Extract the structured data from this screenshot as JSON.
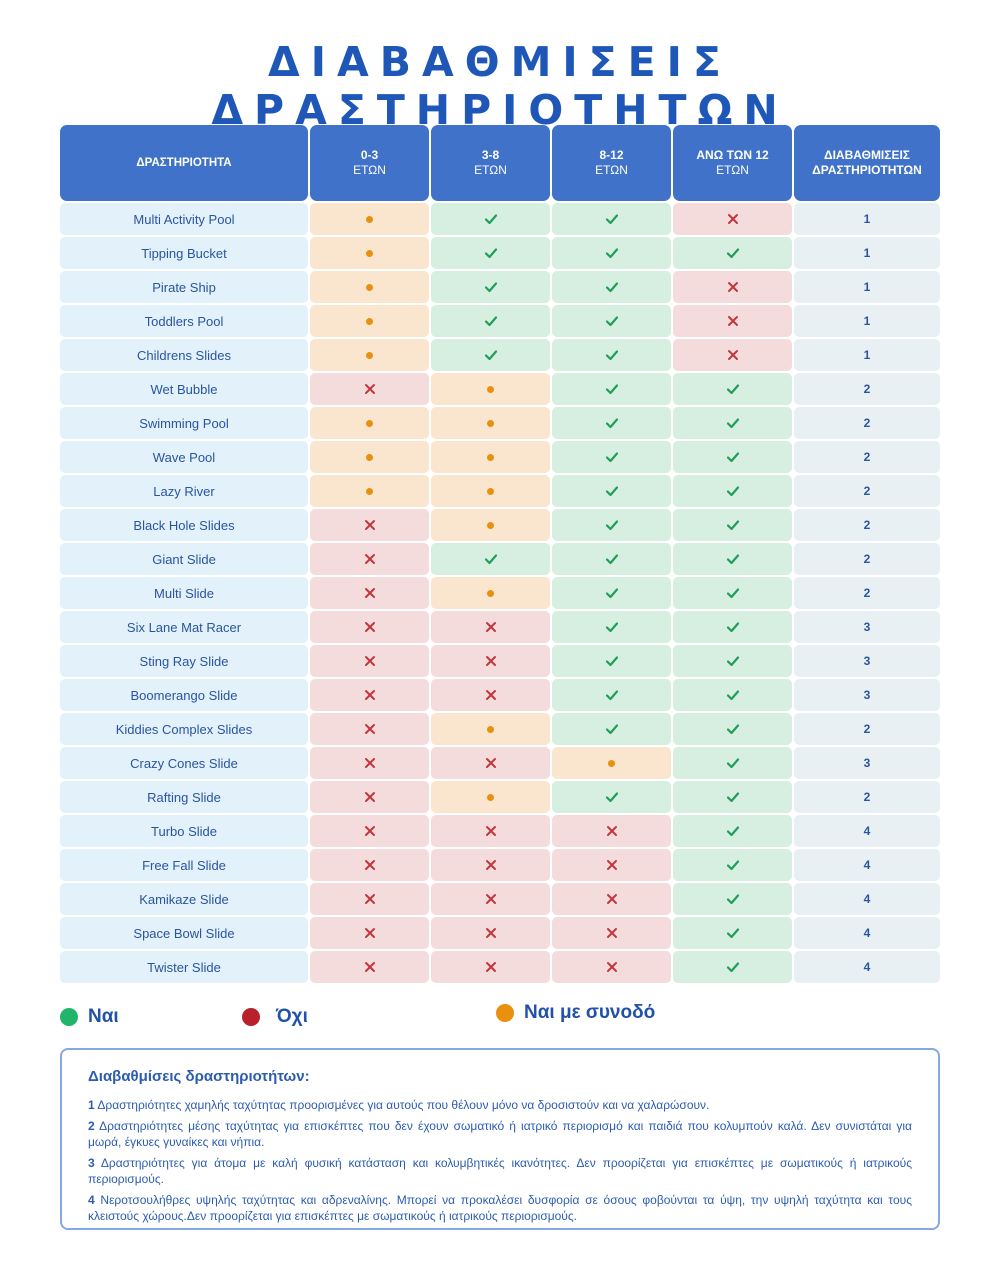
{
  "title": "ΔΙΑΒΑΘΜΙΣΕΙΣ ΔΡΑΣΤΗΡΙΟΤΗΤΩΝ",
  "header": {
    "activity": "ΔΡΑΣΤΗΡΙΟΤΗΤΑ",
    "ages": [
      {
        "line1": "0-3",
        "line2": "ΕΤΩΝ"
      },
      {
        "line1": "3-8",
        "line2": "ΕΤΩΝ"
      },
      {
        "line1": "8-12",
        "line2": "ΕΤΩΝ"
      },
      {
        "line1": "ΑΝΩ ΤΩΝ 12",
        "line2": "ΕΤΩΝ"
      }
    ],
    "rating_line1": "ΔΙΑΒΑΘΜΙΣΕΙΣ",
    "rating_line2": "ΔΡΑΣΤΗΡΙΟΤΗΤΩΝ"
  },
  "status_legend_codes": {
    "y": "yes",
    "n": "no",
    "e": "with-escort"
  },
  "rows": [
    {
      "name": "Multi Activity Pool",
      "s": [
        "e",
        "y",
        "y",
        "n"
      ],
      "rating": "1"
    },
    {
      "name": "Tipping Bucket",
      "s": [
        "e",
        "y",
        "y",
        "y"
      ],
      "rating": "1"
    },
    {
      "name": "Pirate Ship",
      "s": [
        "e",
        "y",
        "y",
        "n"
      ],
      "rating": "1"
    },
    {
      "name": "Toddlers Pool",
      "s": [
        "e",
        "y",
        "y",
        "n"
      ],
      "rating": "1"
    },
    {
      "name": "Childrens Slides",
      "s": [
        "e",
        "y",
        "y",
        "n"
      ],
      "rating": "1"
    },
    {
      "name": "Wet Bubble",
      "s": [
        "n",
        "e",
        "y",
        "y"
      ],
      "rating": "2"
    },
    {
      "name": "Swimming Pool",
      "s": [
        "e",
        "e",
        "y",
        "y"
      ],
      "rating": "2"
    },
    {
      "name": "Wave Pool",
      "s": [
        "e",
        "e",
        "y",
        "y"
      ],
      "rating": "2"
    },
    {
      "name": "Lazy River",
      "s": [
        "e",
        "e",
        "y",
        "y"
      ],
      "rating": "2"
    },
    {
      "name": "Black Hole Slides",
      "s": [
        "n",
        "e",
        "y",
        "y"
      ],
      "rating": "2"
    },
    {
      "name": "Giant Slide",
      "s": [
        "n",
        "y",
        "y",
        "y"
      ],
      "rating": "2"
    },
    {
      "name": "Multi Slide",
      "s": [
        "n",
        "e",
        "y",
        "y"
      ],
      "rating": "2"
    },
    {
      "name": "Six Lane Mat Racer",
      "s": [
        "n",
        "n",
        "y",
        "y"
      ],
      "rating": "3"
    },
    {
      "name": "Sting Ray Slide",
      "s": [
        "n",
        "n",
        "y",
        "y"
      ],
      "rating": "3"
    },
    {
      "name": "Boomerango Slide",
      "s": [
        "n",
        "n",
        "y",
        "y"
      ],
      "rating": "3"
    },
    {
      "name": "Kiddies Complex Slides",
      "s": [
        "n",
        "e",
        "y",
        "y"
      ],
      "rating": "2"
    },
    {
      "name": "Crazy Cones Slide",
      "s": [
        "n",
        "n",
        "e",
        "y"
      ],
      "rating": "3"
    },
    {
      "name": "Rafting Slide",
      "s": [
        "n",
        "e",
        "y",
        "y"
      ],
      "rating": "2"
    },
    {
      "name": "Turbo Slide",
      "s": [
        "n",
        "n",
        "n",
        "y"
      ],
      "rating": "4"
    },
    {
      "name": "Free Fall Slide",
      "s": [
        "n",
        "n",
        "n",
        "y"
      ],
      "rating": "4"
    },
    {
      "name": "Kamikaze Slide",
      "s": [
        "n",
        "n",
        "n",
        "y"
      ],
      "rating": "4"
    },
    {
      "name": "Space Bowl Slide",
      "s": [
        "n",
        "n",
        "n",
        "y"
      ],
      "rating": "4"
    },
    {
      "name": "Twister Slide",
      "s": [
        "n",
        "n",
        "n",
        "y"
      ],
      "rating": "4"
    }
  ],
  "legend": {
    "yes": "Ναι",
    "no": "Όχι",
    "escort": "Ναι με συνοδό",
    "colors": {
      "yes": "#22b569",
      "no": "#b8212a",
      "escort": "#ea8f0f"
    }
  },
  "info": {
    "title": "Διαβαθμίσεις δραστηριοτήτων:",
    "items": [
      {
        "num": "1",
        "text": " Δραστηριότητες χαμηλής ταχύτητας προορισμένες για αυτούς που θέλουν μόνο να δροσιστούν και να χαλαρώσουν."
      },
      {
        "num": "2",
        "text": " Δραστηριότητες μέσης ταχύτητας για επισκέπτες που δεν έχουν σωματικό ή ιατρικό περιορισμό και παιδιά που κολυμπούν καλά. Δεν συνιστάται για μωρά, έγκυες γυναίκες και νήπια."
      },
      {
        "num": "3",
        "text": " Δραστηριότητες για άτομα με καλή φυσική κατάσταση και κολυμβητικές ικανότητες. Δεν προορίζεται για επισκέπτες με σωματικούς ή ιατρικούς περιορισμούς."
      },
      {
        "num": "4",
        "text": " Νεροτσουλήθρες υψηλής ταχύτητας και αδρεναλίνης. Μπορεί να προκαλέσει δυσφορία σε όσους φοβούνται τα ύψη, την υψηλή ταχύτητα και τους κλειστούς χώρους.Δεν προορίζεται για επισκέπτες με σωματικούς ή ιατρικούς περιορισμούς."
      }
    ]
  }
}
